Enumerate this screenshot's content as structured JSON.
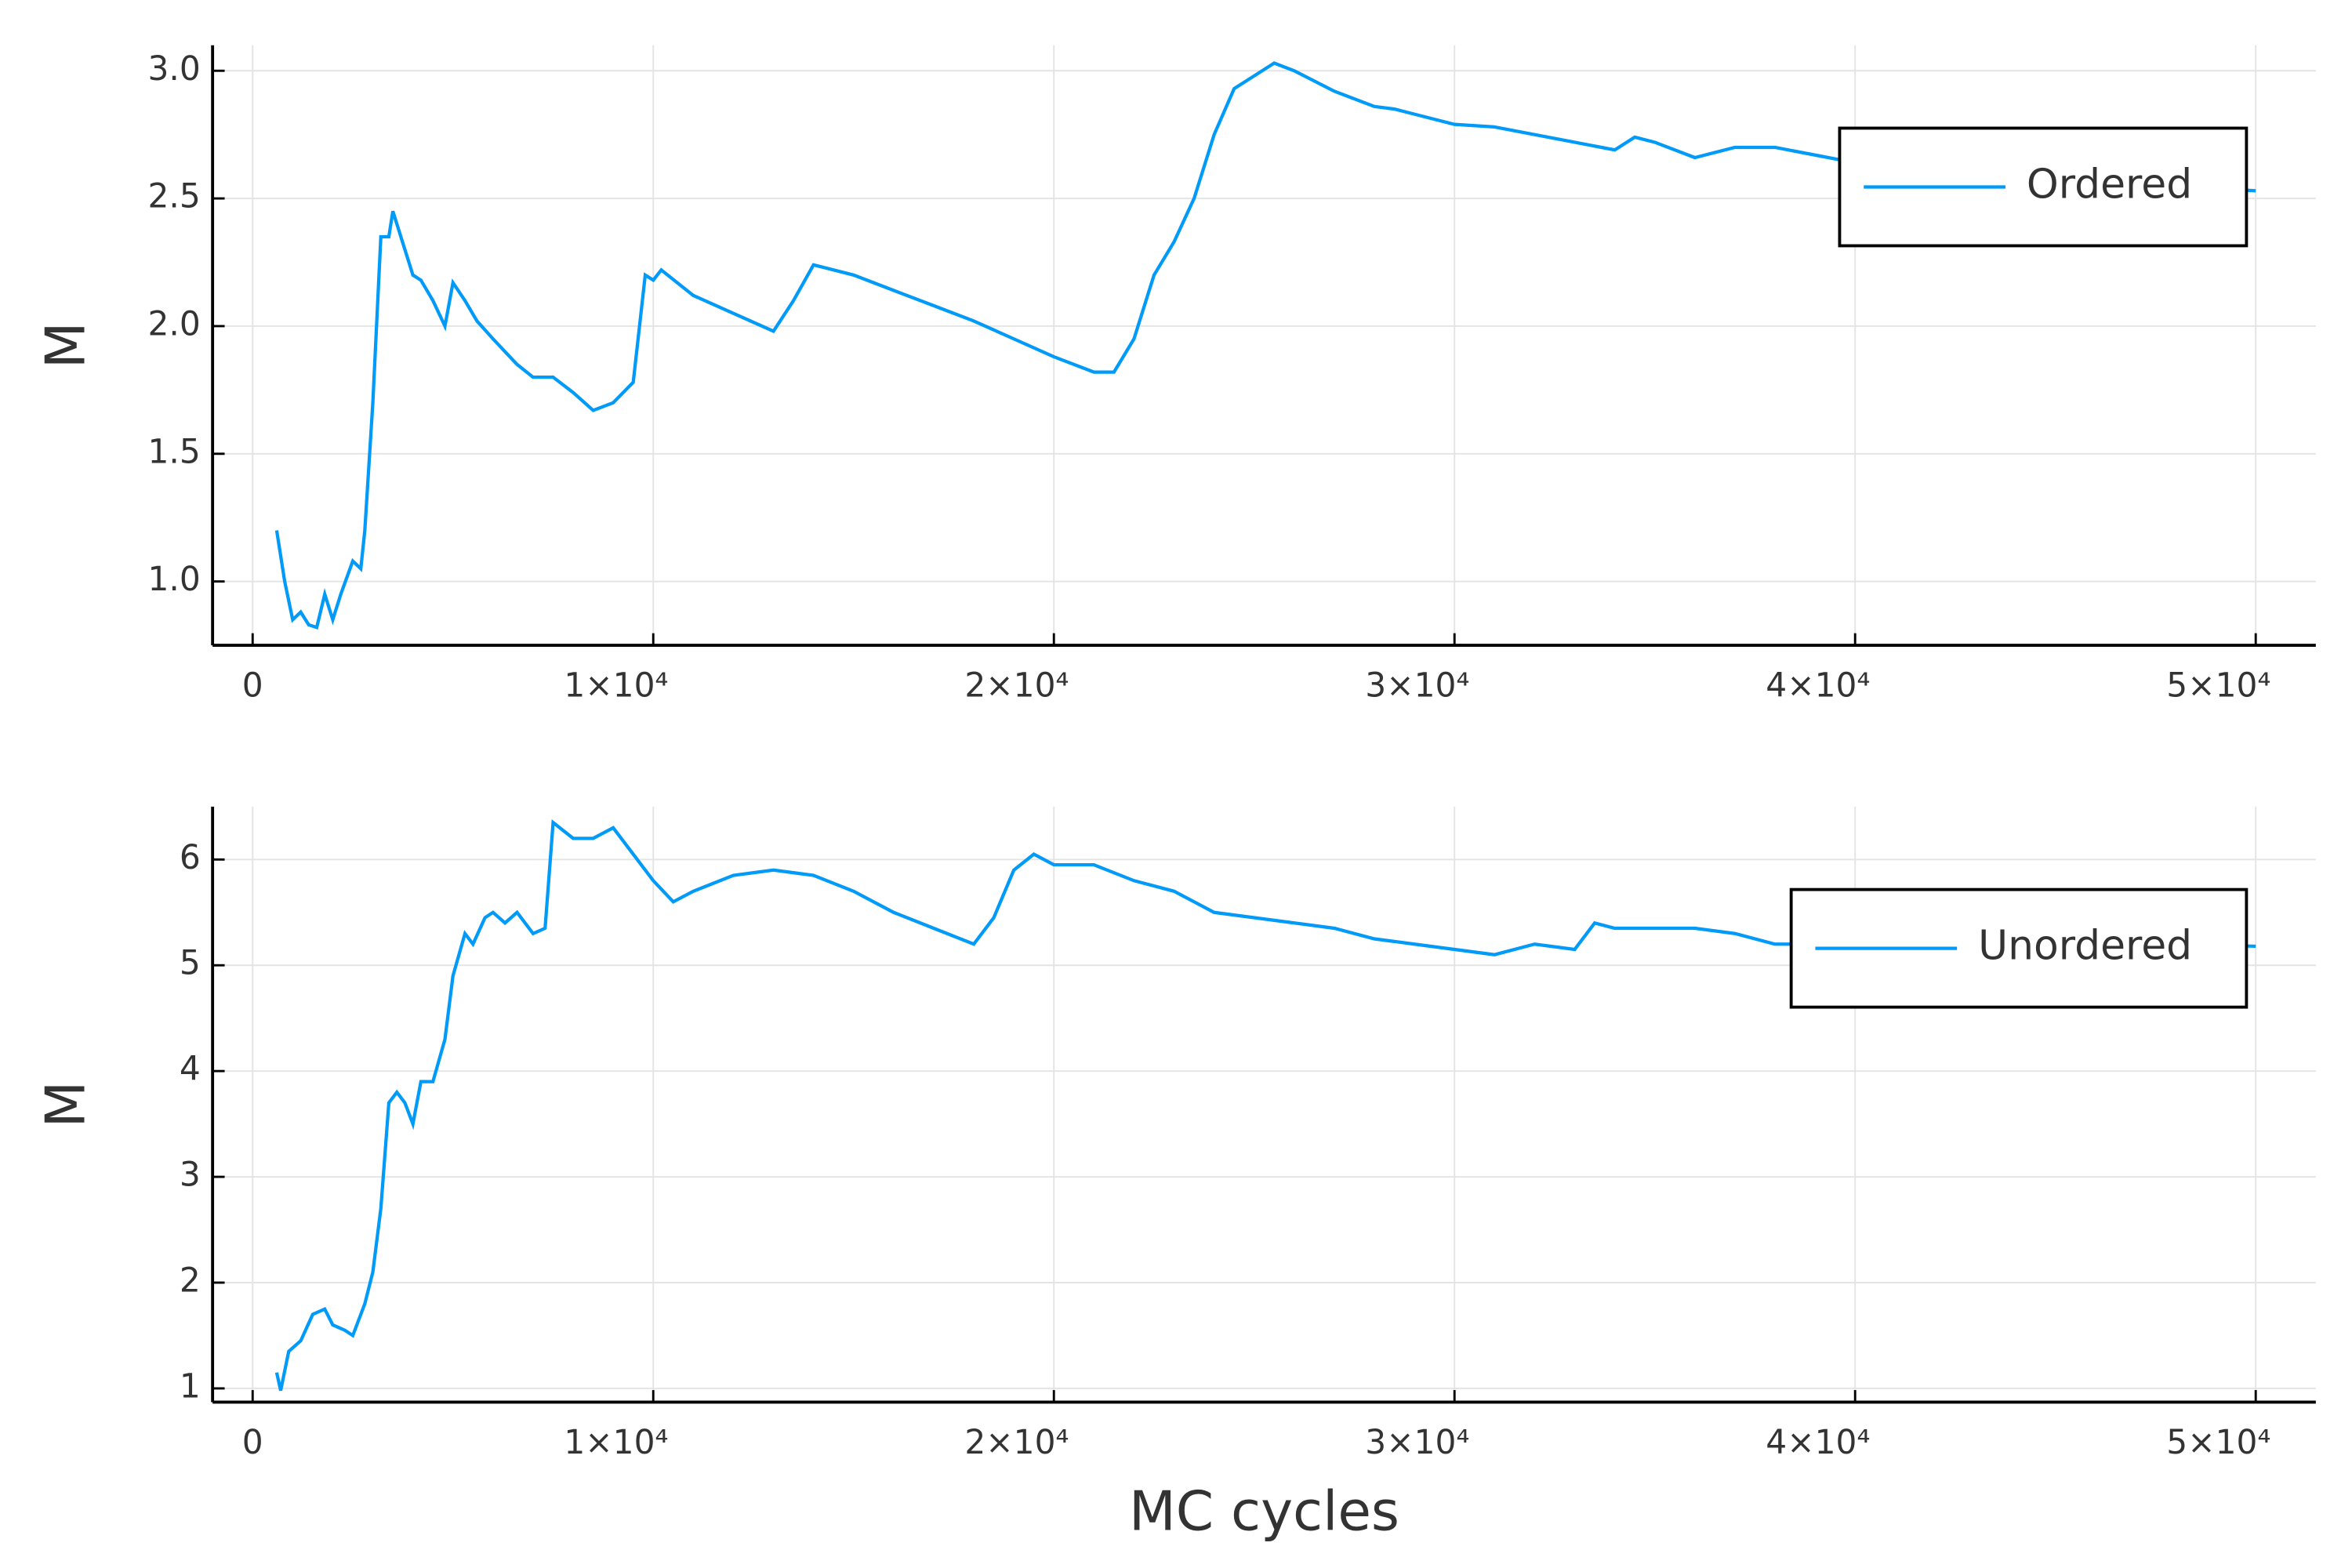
{
  "chart_data": [
    {
      "type": "line",
      "ylabel": "M",
      "legend": "top right",
      "grid": true,
      "xlim": [
        -1000,
        51500
      ],
      "ylim": [
        0.75,
        3.1
      ],
      "xticks": [
        0,
        {
          "value": 10000,
          "label": "1×10⁴"
        },
        {
          "value": 20000,
          "label": "2×10⁴"
        },
        {
          "value": 30000,
          "label": "3×10⁴"
        },
        {
          "value": 40000,
          "label": "4×10⁴"
        },
        {
          "value": 50000,
          "label": "5×10⁴"
        }
      ],
      "yticks": [
        {
          "value": 1,
          "label": "1.0"
        },
        1.5,
        {
          "value": 2,
          "label": "2.0"
        },
        2.5,
        {
          "value": 3,
          "label": "3.0"
        }
      ],
      "x": [
        600,
        800,
        1000,
        1200,
        1400,
        1600,
        1800,
        2000,
        2200,
        2500,
        2700,
        2800,
        3000,
        3200,
        3400,
        3500,
        3800,
        4000,
        4200,
        4500,
        4800,
        5000,
        5300,
        5600,
        6000,
        6300,
        6600,
        7000,
        7500,
        8000,
        8500,
        9000,
        9500,
        9800,
        10000,
        10200,
        11000,
        12000,
        13000,
        13500,
        14000,
        15000,
        16000,
        17000,
        18000,
        19000,
        20000,
        21000,
        21500,
        22000,
        22500,
        23000,
        23500,
        24000,
        24500,
        25000,
        25500,
        26000,
        27000,
        28000,
        28500,
        29000,
        30000,
        31000,
        32000,
        33000,
        34000,
        34500,
        35000,
        36000,
        37000,
        38000,
        39000,
        40000,
        41000,
        42000,
        44000,
        46000,
        48000,
        50000
      ],
      "series": [
        {
          "name": "Ordered",
          "color": "#009af9",
          "values": [
            1.2,
            1.0,
            0.85,
            0.88,
            0.83,
            0.82,
            0.95,
            0.85,
            0.95,
            1.08,
            1.05,
            1.2,
            1.7,
            2.35,
            2.35,
            2.45,
            2.3,
            2.2,
            2.18,
            2.1,
            2.0,
            2.17,
            2.1,
            2.02,
            1.95,
            1.9,
            1.85,
            1.8,
            1.8,
            1.74,
            1.67,
            1.7,
            1.78,
            2.2,
            2.18,
            2.22,
            2.12,
            2.05,
            1.98,
            2.1,
            2.24,
            2.2,
            2.14,
            2.08,
            2.02,
            1.95,
            1.88,
            1.82,
            1.82,
            1.95,
            2.2,
            2.33,
            2.5,
            2.75,
            2.93,
            2.98,
            3.03,
            3.0,
            2.92,
            2.86,
            2.85,
            2.83,
            2.79,
            2.78,
            2.75,
            2.72,
            2.69,
            2.74,
            2.72,
            2.66,
            2.7,
            2.7,
            2.67,
            2.64,
            2.6,
            2.58,
            2.57,
            2.56,
            2.55,
            2.53
          ]
        }
      ]
    },
    {
      "type": "line",
      "xlabel": "MC cycles",
      "ylabel": "M",
      "legend": "top right",
      "grid": true,
      "xlim": [
        -1000,
        51500
      ],
      "ylim": [
        0.87,
        6.5
      ],
      "xticks": [
        0,
        {
          "value": 10000,
          "label": "1×10⁴"
        },
        {
          "value": 20000,
          "label": "2×10⁴"
        },
        {
          "value": 30000,
          "label": "3×10⁴"
        },
        {
          "value": 40000,
          "label": "4×10⁴"
        },
        {
          "value": 50000,
          "label": "5×10⁴"
        }
      ],
      "yticks": [
        1,
        2,
        3,
        4,
        5,
        6
      ],
      "x": [
        600,
        700,
        900,
        1200,
        1500,
        1800,
        2000,
        2300,
        2500,
        2800,
        3000,
        3200,
        3400,
        3600,
        3800,
        4000,
        4200,
        4500,
        4800,
        5000,
        5300,
        5500,
        5800,
        6000,
        6300,
        6600,
        7000,
        7300,
        7500,
        8000,
        8500,
        9000,
        9500,
        10000,
        10500,
        11000,
        12000,
        13000,
        14000,
        15000,
        16000,
        17000,
        18000,
        18500,
        19000,
        19500,
        20000,
        21000,
        22000,
        23000,
        24000,
        25000,
        26000,
        27000,
        28000,
        29000,
        30000,
        31000,
        32000,
        33000,
        33500,
        34000,
        35000,
        36000,
        37000,
        38000,
        40000,
        42000,
        44000,
        46000,
        48000,
        50000
      ],
      "series": [
        {
          "name": "Unordered",
          "color": "#009af9",
          "values": [
            1.15,
            0.98,
            1.35,
            1.45,
            1.7,
            1.75,
            1.6,
            1.55,
            1.5,
            1.8,
            2.1,
            2.7,
            3.7,
            3.8,
            3.7,
            3.5,
            3.9,
            3.9,
            4.3,
            4.9,
            5.3,
            5.2,
            5.45,
            5.5,
            5.4,
            5.5,
            5.3,
            5.35,
            6.35,
            6.2,
            6.2,
            6.3,
            6.05,
            5.8,
            5.6,
            5.7,
            5.85,
            5.9,
            5.85,
            5.7,
            5.5,
            5.35,
            5.2,
            5.45,
            5.9,
            6.05,
            5.95,
            5.95,
            5.8,
            5.7,
            5.5,
            5.45,
            5.4,
            5.35,
            5.25,
            5.2,
            5.15,
            5.1,
            5.2,
            5.15,
            5.4,
            5.35,
            5.35,
            5.35,
            5.3,
            5.2,
            5.2,
            5.18,
            5.2,
            5.2,
            5.2,
            5.18
          ]
        }
      ]
    }
  ]
}
